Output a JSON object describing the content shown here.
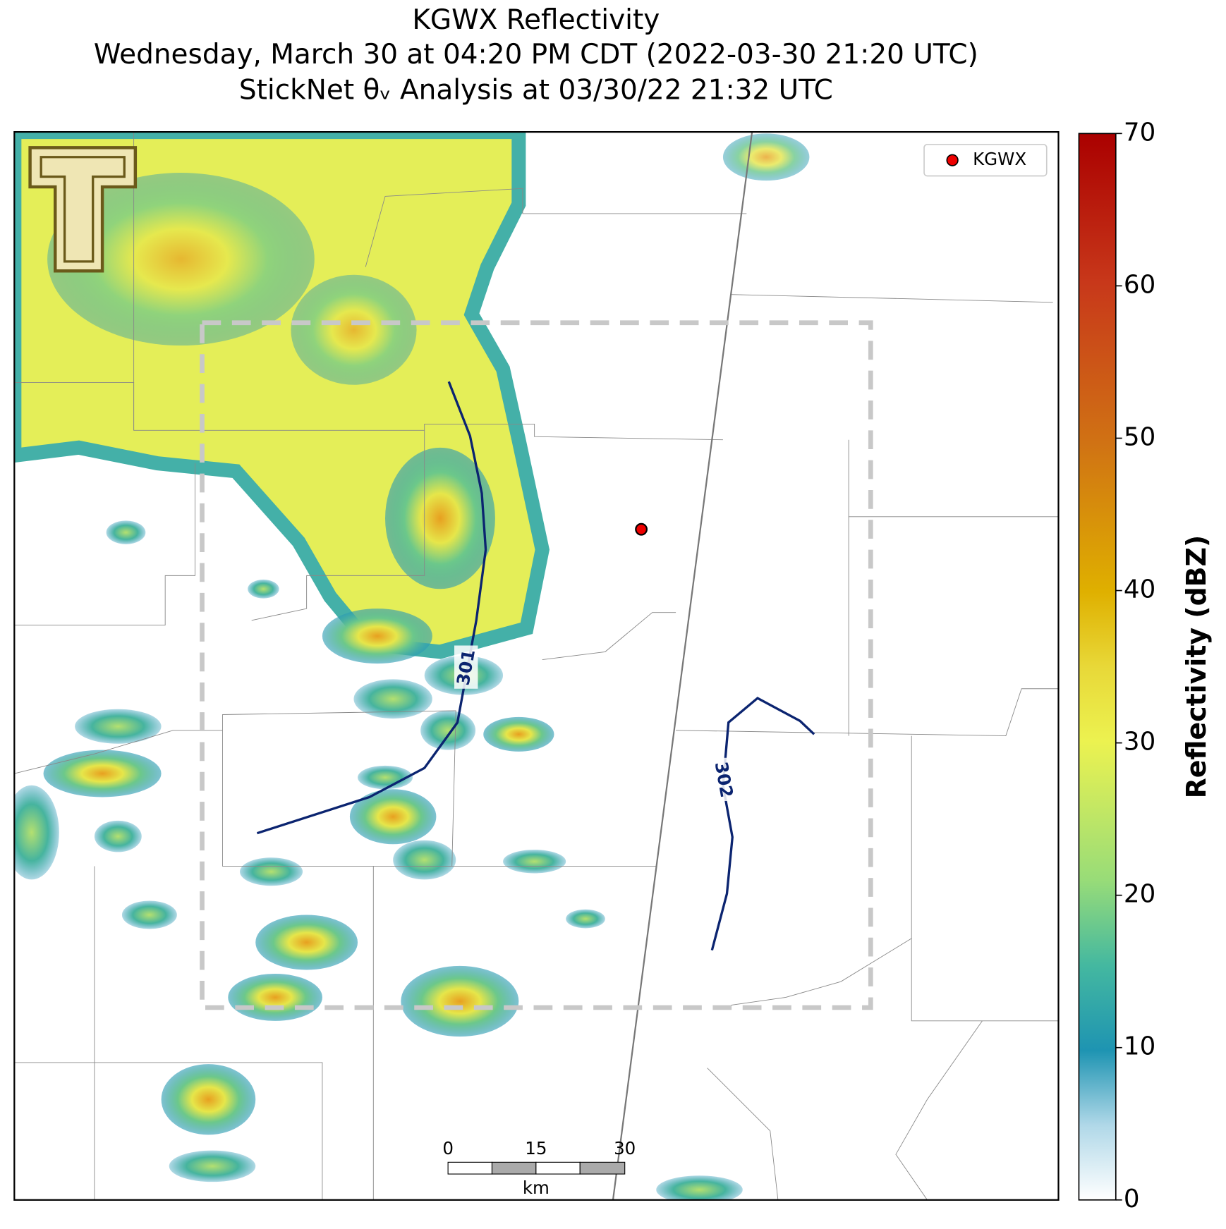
{
  "title": [
    "KGWX Reflectivity",
    "Wednesday, March 30 at 04:20 PM CDT (2022-03-30 21:20 UTC)",
    "StickNet θᵥ Analysis at 03/30/22 21:32 UTC"
  ],
  "legend": {
    "label": "KGWX"
  },
  "contours": [
    {
      "level": "301"
    },
    {
      "level": "302"
    }
  ],
  "scale_bar": {
    "ticks": [
      "0",
      "15",
      "30"
    ],
    "unit": "km"
  },
  "colorbar": {
    "label": "Reflectivity (dBZ)",
    "lim": [
      0,
      70
    ],
    "ticks": [
      0,
      10,
      20,
      30,
      40,
      50,
      60,
      70
    ]
  }
}
